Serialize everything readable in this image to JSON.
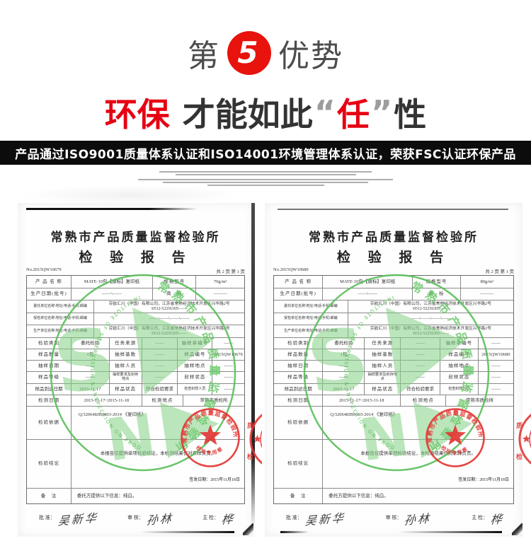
{
  "header": {
    "badge_prefix": "第",
    "badge_number": "5",
    "badge_suffix": "优势",
    "headline_red1": "环保",
    "headline_black1": "才能如此",
    "headline_quote_open": "“",
    "headline_red2": "任",
    "headline_quote_close": "”",
    "headline_black2": "性",
    "banner": "产品通过ISO9001质量体系认证和ISO14001环境管理体系认证，荣获FSC认证环保产品"
  },
  "colors": {
    "accent_red": "#e60012",
    "circle_red": "#e8130d",
    "banner_bg": "#0c0c0c",
    "stamp_green": "#5abf5a",
    "seal_red": "#e23834"
  },
  "certificates": [
    {
      "org": "常熟市产品质量监督检验所",
      "doc_title": "检 验 报 告",
      "report_no": "No.2015QW10679",
      "page_info": "共 2 页 第 1 页",
      "fields": {
        "product_label": "产 品 名 称",
        "product_value": "MATE·10包【旗标】复印纸",
        "spec_label": "规格型号",
        "spec_value": "70g/m²",
        "prod_date_label": "生产日期(批号)",
        "prod_date_value": "——\\——",
        "brand_label": "商　标",
        "brand_value": "———",
        "client_label": "委托单位名称\\地址\\电话\\手机\\邮编",
        "client_value": "芬欧汇川（中国）有限公司，江苏省常熟经济技术开发区兴华路2号",
        "client_value2": "\\0512-52256305\\——",
        "inspected_label": "受检单位名称\\地址\\电话\\手机\\邮编",
        "inspected_value": "——\\——\\——\\——",
        "producer_label": "生产单位名称\\地址\\电话\\手机\\邮编",
        "producer_value": "芬欧汇川（中国）有限公司，江苏省常熟经济技术开发区兴华路2号",
        "producer_value2": "\\0512-52256305\\——",
        "category_label": "检验类别",
        "category_value": "委托检验",
        "task_label": "任务来源",
        "task_value": "——",
        "sheet_label": "抽样单编号",
        "sheet_value": "——",
        "qty_label": "样品数量",
        "qty_value": "1包",
        "base_label": "抽样基数",
        "base_value": "——",
        "sample_no_label": "样品编号",
        "sample_no_value": "2015QW10679",
        "sampling_date_label": "抽样日期",
        "sampling_date_value": "——",
        "sampler_label": "抽样人员",
        "sampler_value": "——",
        "sampling_place_label": "抽样地点",
        "sampling_place_value": "——",
        "grade_label": "样品等级",
        "grade_value": "——",
        "seal_req_label": "抽样要求及封存地点",
        "seal_req_value": "——",
        "seal_state_label": "封样状态",
        "seal_state_value": "——",
        "arrival_label": "样品到达日期",
        "arrival_value": "2015-11-17",
        "state_label": "样品状态",
        "state_value": "符合检验要求",
        "seal_check_label": "检查封样人员",
        "seal_check_value": "——",
        "test_date_label": "检测日期",
        "test_date_value": "2015-11-17~2015-11-18",
        "test_place_label": "检测地点",
        "test_place_value": "常熟市质检所",
        "basis_label": "检验依据",
        "basis_value": "Q/320648JB9003-2014 《复印纸》",
        "conclusion_label": "检验结论",
        "conclusion_value": "本报告仅提供单项检验结论，本检测结果仅对来样负责。",
        "issue_date": "签发日期：2015年11月18日",
        "remark_label": "备　注",
        "remark_value": "委托方提供以下信息：纯白。",
        "approve_label": "批 准：",
        "approve_sign": "吴新华",
        "review_label": "审 核：",
        "review_sign": "孙林",
        "chief_label": "主 检：",
        "chief_sign": "桦"
      },
      "stamp": {
        "ring_en": "INSTITUTE OF SUPERVISION & INSPECTION ON PRODUCT QUALITY",
        "ring_cn": "常熟市产品质量监督检验所",
        "seal_top": "常熟市产品质量监督检验所",
        "seal_bottom": "检验专用章"
      }
    },
    {
      "org": "常熟市产品质量监督检验所",
      "doc_title": "检 验 报 告",
      "report_no": "No.2015QW10680",
      "page_info": "共 2 页 第 1 页",
      "fields": {
        "product_label": "产 品 名 称",
        "product_value": "MATE·10包【旗标】复印纸",
        "spec_label": "规格型号",
        "spec_value": "80g/m²",
        "prod_date_label": "生产日期(批号)",
        "prod_date_value": "——\\——",
        "brand_label": "商　标",
        "brand_value": "———",
        "client_label": "委托单位名称\\地址\\电话\\手机\\邮编",
        "client_value": "芬欧汇川（中国）有限公司，江苏省常熟经济技术开发区兴华路2号",
        "client_value2": "\\0512-52256305\\——",
        "inspected_label": "受检单位名称\\地址\\电话\\手机\\邮编",
        "inspected_value": "——\\——\\——\\——",
        "producer_label": "生产单位名称\\地址\\电话\\手机\\邮编",
        "producer_value": "芬欧汇川（中国）有限公司，江苏省常熟经济技术开发区兴华路2号",
        "producer_value2": "\\0512-52256305\\——",
        "category_label": "检验类别",
        "category_value": "委托检验",
        "task_label": "任务来源",
        "task_value": "——",
        "sheet_label": "抽样单编号",
        "sheet_value": "——",
        "qty_label": "样品数量",
        "qty_value": "1包",
        "base_label": "抽样基数",
        "base_value": "——",
        "sample_no_label": "样品编号",
        "sample_no_value": "2015QW10680",
        "sampling_date_label": "抽样日期",
        "sampling_date_value": "——",
        "sampler_label": "抽样人员",
        "sampler_value": "——",
        "sampling_place_label": "抽样地点",
        "sampling_place_value": "——",
        "grade_label": "样品等级",
        "grade_value": "——",
        "seal_req_label": "抽样要求及封存地点",
        "seal_req_value": "——",
        "seal_state_label": "封样状态",
        "seal_state_value": "——",
        "arrival_label": "样品到达日期",
        "arrival_value": "2015-11-17",
        "state_label": "样品状态",
        "state_value": "符合检验要求",
        "seal_check_label": "检查封样人员",
        "seal_check_value": "——",
        "test_date_label": "检测日期",
        "test_date_value": "2015-11-17~2015-11-18",
        "test_place_label": "检测地点",
        "test_place_value": "常熟市质检所",
        "basis_label": "检验依据",
        "basis_value": "Q/320648JB9003-2014 《复印纸》",
        "conclusion_label": "检验结论",
        "conclusion_value": "本报告仅提供单项检验结论，本检测结果仅对来样负责。",
        "issue_date": "签发日期：2015年11月18日",
        "remark_label": "备　注",
        "remark_value": "委托方提供以下信息：纯白。",
        "approve_label": "批 准：",
        "approve_sign": "吴新华",
        "review_label": "审 核：",
        "review_sign": "孙林",
        "chief_label": "主 检：",
        "chief_sign": "桦"
      },
      "stamp": {
        "ring_en": "INSTITUTE OF SUPERVISION & INSPECTION ON PRODUCT QUALITY",
        "ring_cn": "常熟市产品质量监督检验所",
        "seal_top": "常熟市产品质量监督检验所",
        "seal_bottom": "检验专用章"
      }
    }
  ]
}
